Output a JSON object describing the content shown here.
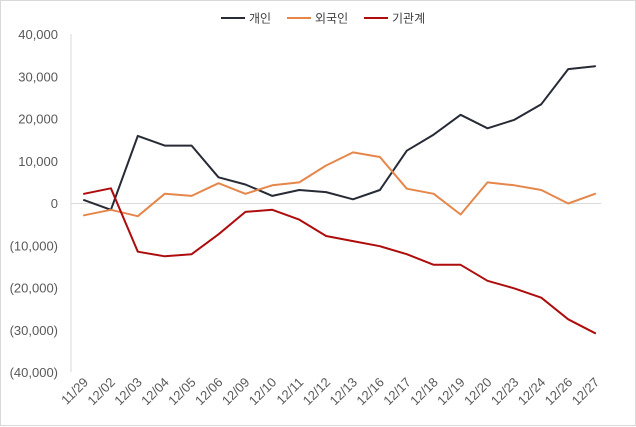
{
  "chart_data": {
    "type": "line",
    "categories": [
      "11/29",
      "12/02",
      "12/03",
      "12/04",
      "12/05",
      "12/06",
      "12/09",
      "12/10",
      "12/11",
      "12/12",
      "12/13",
      "12/16",
      "12/17",
      "12/18",
      "12/19",
      "12/20",
      "12/23",
      "12/24",
      "12/26",
      "12/27"
    ],
    "series": [
      {
        "name": "개인",
        "color": "#262b36",
        "values": [
          800,
          -1500,
          16000,
          13700,
          13700,
          6200,
          4500,
          1800,
          3200,
          2700,
          1000,
          3200,
          12500,
          16300,
          21000,
          17800,
          19800,
          23500,
          31800,
          32500
        ]
      },
      {
        "name": "외국인",
        "color": "#e5874b",
        "values": [
          -2800,
          -1500,
          -3000,
          2300,
          1800,
          4800,
          2300,
          4300,
          5000,
          9000,
          12100,
          11000,
          3500,
          2300,
          -2600,
          5000,
          4300,
          3200,
          0,
          2300
        ]
      },
      {
        "name": "기관계",
        "color": "#ad0d0d",
        "values": [
          2300,
          3600,
          -11400,
          -12500,
          -12000,
          -7300,
          -2000,
          -1500,
          -3800,
          -7700,
          -8900,
          -10100,
          -12000,
          -14500,
          -14500,
          -18300,
          -20100,
          -22300,
          -27400,
          -30700
        ]
      }
    ],
    "ylim": [
      -40000,
      40000
    ],
    "yticks": [
      40000,
      30000,
      20000,
      10000,
      0,
      -10000,
      -20000,
      -30000,
      -40000
    ],
    "ytick_labels": [
      "40,000",
      "30,000",
      "20,000",
      "10,000",
      "0",
      "(10,000)",
      "(20,000)",
      "(30,000)",
      "(40,000)"
    ],
    "legend_position": "top-center",
    "grid": false
  }
}
